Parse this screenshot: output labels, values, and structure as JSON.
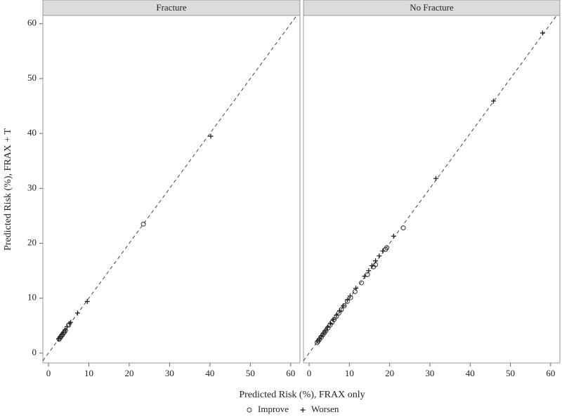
{
  "chart_data": {
    "type": "scatter",
    "xlabel": "Predicted Risk (%), FRAX only",
    "ylabel": "Predicted Risk (%), FRAX + T",
    "xlim": [
      -1.4,
      62.3
    ],
    "ylim": [
      -1.8,
      61.5
    ],
    "xticks": [
      0,
      10,
      20,
      30,
      40,
      50,
      60
    ],
    "yticks": [
      0,
      10,
      20,
      30,
      40,
      50,
      60
    ],
    "series": [
      {
        "name": "Improve",
        "marker": "circle"
      },
      {
        "name": "Worsen",
        "marker": "plus"
      }
    ],
    "panels": [
      {
        "title": "Fracture",
        "series": [
          {
            "x": [
              2.6,
              2.8,
              3.0,
              3.2,
              3.4,
              3.6,
              3.9,
              4.2,
              5.0,
              23.5
            ],
            "values": [
              2.5,
              2.7,
              2.9,
              3.1,
              3.3,
              3.5,
              3.8,
              4.1,
              5.1,
              23.5
            ]
          },
          {
            "x": [
              2.5,
              2.9,
              3.3,
              3.7,
              4.1,
              4.6,
              5.2,
              5.5,
              7.2,
              9.6,
              40.2
            ],
            "values": [
              2.6,
              3.0,
              3.4,
              3.8,
              4.2,
              4.8,
              5.4,
              5.6,
              7.3,
              9.4,
              39.5
            ]
          }
        ]
      },
      {
        "title": "No Fracture",
        "series": [
          {
            "x": [
              2.0,
              2.3,
              2.6,
              3.0,
              3.4,
              3.8,
              4.2,
              4.7,
              5.2,
              5.7,
              6.2,
              6.8,
              7.4,
              8.0,
              8.7,
              9.5,
              10.3,
              11.4,
              13.0,
              14.5,
              16.0,
              16.5,
              19.0,
              19.3,
              23.4
            ],
            "values": [
              1.9,
              2.2,
              2.5,
              2.9,
              3.3,
              3.7,
              4.1,
              4.6,
              5.1,
              5.6,
              6.1,
              6.7,
              7.3,
              7.9,
              8.6,
              9.4,
              10.1,
              11.2,
              12.8,
              14.3,
              15.7,
              16.1,
              18.9,
              19.2,
              22.8
            ]
          },
          {
            "x": [
              2.1,
              2.5,
              3.0,
              3.5,
              4.0,
              4.6,
              5.3,
              6.0,
              6.8,
              7.6,
              8.5,
              9.5,
              10.2,
              11.6,
              13.8,
              14.8,
              15.6,
              16.5,
              17.4,
              18.3,
              21.0,
              31.5,
              45.8,
              58.0
            ],
            "values": [
              2.2,
              2.6,
              3.1,
              3.6,
              4.1,
              4.7,
              5.4,
              6.1,
              6.9,
              7.7,
              8.6,
              9.7,
              10.4,
              11.8,
              14.0,
              15.0,
              15.9,
              16.8,
              17.7,
              18.6,
              21.3,
              31.8,
              45.9,
              58.3
            ]
          }
        ]
      }
    ]
  }
}
